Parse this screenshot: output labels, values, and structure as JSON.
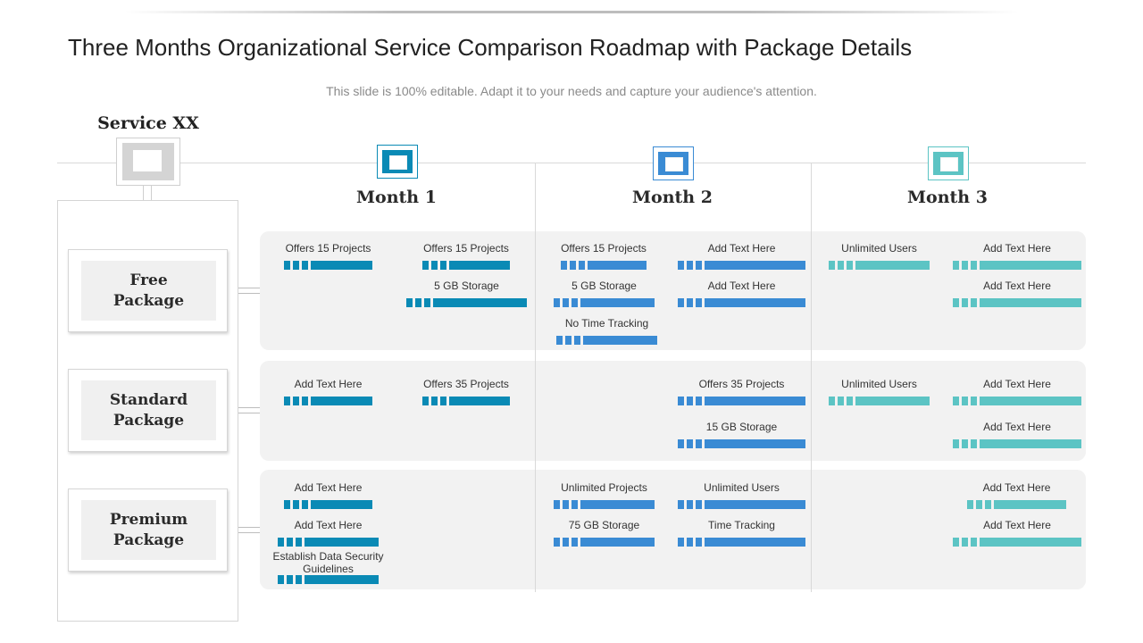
{
  "header": {
    "title": "Three Months Organizational Service Comparison Roadmap with Package Details",
    "subtitle": "This slide is 100% editable. Adapt it to your needs and capture your audience's attention."
  },
  "service": {
    "title": "Service XX"
  },
  "packages": [
    {
      "name": "Free\nPackage"
    },
    {
      "name": "Standard\nPackage"
    },
    {
      "name": "Premium\nPackage"
    }
  ],
  "months": [
    {
      "label": "Month 1",
      "color": "#0a8ab5"
    },
    {
      "label": "Month 2",
      "color": "#3a8bd4"
    },
    {
      "label": "Month 3",
      "color": "#5cc4c4"
    }
  ],
  "cells": {
    "free": {
      "m1": [
        "Offers 15 Projects",
        "Offers 15 Projects",
        "5 GB Storage"
      ],
      "m2": [
        "Offers 15 Projects",
        "Add Text Here",
        "5 GB Storage",
        "Add Text Here",
        "No Time Tracking"
      ],
      "m3": [
        "Unlimited Users",
        "Add Text Here",
        "Add Text Here"
      ]
    },
    "standard": {
      "m1": [
        "Add Text Here",
        "Offers 35 Projects"
      ],
      "m2": [
        "Offers 35 Projects",
        "15 GB Storage"
      ],
      "m3": [
        "Unlimited Users",
        "Add Text Here",
        "Add Text Here"
      ]
    },
    "premium": {
      "m1": [
        "Add Text Here",
        "Add Text Here",
        "Establish Data Security Guidelines"
      ],
      "m2": [
        "Unlimited Projects",
        "Unlimited Users",
        "75 GB Storage",
        "Time Tracking"
      ],
      "m3": [
        "Add Text Here",
        "Add Text Here"
      ]
    }
  }
}
